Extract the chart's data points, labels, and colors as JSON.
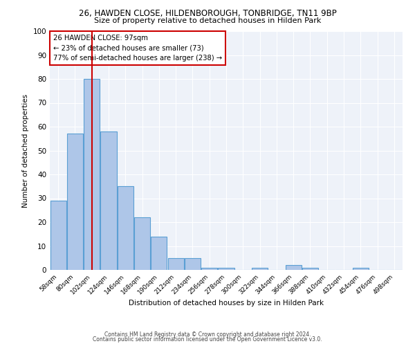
{
  "title1": "26, HAWDEN CLOSE, HILDENBOROUGH, TONBRIDGE, TN11 9BP",
  "title2": "Size of property relative to detached houses in Hilden Park",
  "xlabel": "Distribution of detached houses by size in Hilden Park",
  "ylabel": "Number of detached properties",
  "bar_labels": [
    "58sqm",
    "80sqm",
    "102sqm",
    "124sqm",
    "146sqm",
    "168sqm",
    "190sqm",
    "212sqm",
    "234sqm",
    "256sqm",
    "278sqm",
    "300sqm",
    "322sqm",
    "344sqm",
    "366sqm",
    "388sqm",
    "410sqm",
    "432sqm",
    "454sqm",
    "476sqm",
    "498sqm"
  ],
  "bar_values": [
    29,
    57,
    80,
    58,
    35,
    22,
    14,
    5,
    5,
    1,
    1,
    0,
    1,
    0,
    2,
    1,
    0,
    0,
    1,
    0,
    0
  ],
  "bar_color": "#aec6e8",
  "bar_edge_color": "#5a9fd4",
  "red_line_x": 2,
  "red_line_color": "#cc0000",
  "annotation_title": "26 HAWDEN CLOSE: 97sqm",
  "annotation_line1": "← 23% of detached houses are smaller (73)",
  "annotation_line2": "77% of semi-detached houses are larger (238) →",
  "annotation_box_color": "#cc0000",
  "footer1": "Contains HM Land Registry data © Crown copyright and database right 2024.",
  "footer2": "Contains public sector information licensed under the Open Government Licence v3.0.",
  "ylim": [
    0,
    100
  ],
  "bg_color": "#eef2f9"
}
